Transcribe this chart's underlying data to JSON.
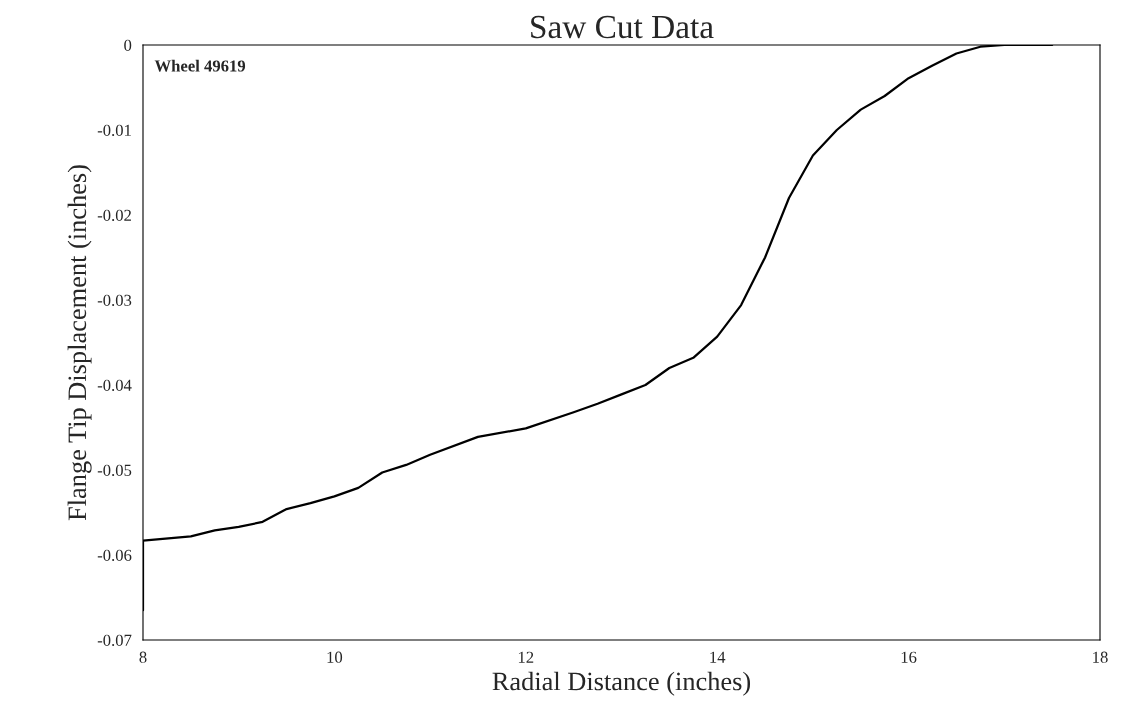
{
  "chart_data": {
    "type": "line",
    "title": "Saw Cut Data",
    "xlabel": "Radial Distance (inches)",
    "ylabel": "Flange Tip Displacement (inches)",
    "annotations": [
      "Wheel 49619"
    ],
    "x": [
      8,
      8,
      8.5,
      8.75,
      9,
      9.25,
      9.5,
      9.75,
      10,
      10.25,
      10.5,
      10.75,
      11,
      11.5,
      12,
      12.5,
      12.75,
      13,
      13.25,
      13.5,
      13.75,
      14,
      14.25,
      14.5,
      14.75,
      15,
      15.25,
      15.5,
      15.75,
      16,
      16.25,
      16.5,
      16.75,
      17,
      17.5
    ],
    "series": [
      {
        "color": "#000000",
        "values": [
          -0.0665,
          -0.0583,
          -0.0578,
          -0.0571,
          -0.0567,
          -0.0561,
          -0.0546,
          -0.0539,
          -0.0531,
          -0.0521,
          -0.0503,
          -0.0494,
          -0.0482,
          -0.0461,
          -0.0451,
          -0.0432,
          -0.0422,
          -0.0411,
          -0.04,
          -0.038,
          -0.0368,
          -0.0343,
          -0.0306,
          -0.025,
          -0.018,
          -0.013,
          -0.01,
          -0.0076,
          -0.006,
          -0.0039,
          -0.0024,
          -0.001,
          -0.0002,
          0,
          0
        ]
      }
    ],
    "xlim": [
      8,
      18
    ],
    "xticks": [
      8,
      10,
      12,
      14,
      16,
      18
    ],
    "ylim": [
      -0.07,
      0
    ],
    "yticks": [
      -0.07,
      -0.06,
      -0.05,
      -0.04,
      -0.03,
      -0.02,
      -0.01,
      0
    ],
    "grid": false,
    "legend": false,
    "marker": "none",
    "line_style": "solid"
  }
}
